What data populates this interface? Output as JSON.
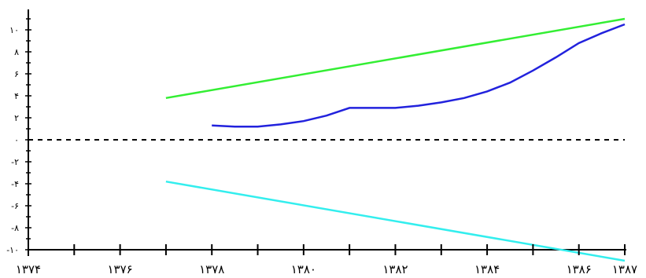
{
  "chart_data": {
    "type": "line",
    "title": "",
    "xlabel": "",
    "ylabel": "",
    "xlim": [
      1374,
      1387
    ],
    "ylim": [
      -10,
      11
    ],
    "x_ticks": [
      {
        "value": 1374,
        "label": "۱۳۷۴"
      },
      {
        "value": 1376,
        "label": "۱۳۷۶"
      },
      {
        "value": 1378,
        "label": "۱۳۷۸"
      },
      {
        "value": 1380,
        "label": "۱۳۸۰"
      },
      {
        "value": 1382,
        "label": "۱۳۸۲"
      },
      {
        "value": 1384,
        "label": "۱۳۸۴"
      },
      {
        "value": 1386,
        "label": "۱۳۸۶"
      },
      {
        "value": 1387,
        "label": "۱۳۸۷"
      }
    ],
    "x_minor_ticks": [
      1374,
      1375,
      1376,
      1377,
      1378,
      1379,
      1380,
      1381,
      1382,
      1383,
      1384,
      1385,
      1386,
      1387
    ],
    "y_ticks": [
      {
        "value": 10,
        "label": "۱۰"
      },
      {
        "value": 8,
        "label": "۸"
      },
      {
        "value": 6,
        "label": "۶"
      },
      {
        "value": 4,
        "label": "۴"
      },
      {
        "value": 2,
        "label": "۲"
      },
      {
        "value": 0,
        "label": "۰"
      },
      {
        "value": -2,
        "label": "-۲"
      },
      {
        "value": -4,
        "label": "-۴"
      },
      {
        "value": -6,
        "label": "-۶"
      },
      {
        "value": -8,
        "label": "-۸"
      },
      {
        "value": -10,
        "label": "-۱۰"
      }
    ],
    "series": [
      {
        "color": "#33ee33",
        "x": [
          1377,
          1387
        ],
        "y": [
          3.8,
          11.0
        ]
      },
      {
        "color": "#2222dd",
        "x": [
          1378,
          1378.5,
          1379,
          1379.5,
          1380,
          1380.5,
          1381,
          1381.5,
          1382,
          1382.5,
          1383,
          1383.5,
          1384,
          1384.5,
          1385,
          1385.5,
          1386,
          1386.5,
          1387
        ],
        "y": [
          1.3,
          1.2,
          1.2,
          1.4,
          1.7,
          2.2,
          2.9,
          2.9,
          2.9,
          3.1,
          3.4,
          3.8,
          4.4,
          5.2,
          6.3,
          7.5,
          8.8,
          9.7,
          10.5
        ]
      },
      {
        "color": "#33eeee",
        "x": [
          1377,
          1387
        ],
        "y": [
          -3.8,
          -11.0
        ]
      },
      {
        "color": "#000000",
        "dashed": true,
        "x": [
          1374,
          1387
        ],
        "y": [
          0,
          0
        ]
      }
    ],
    "grid": false,
    "legend": "none"
  }
}
